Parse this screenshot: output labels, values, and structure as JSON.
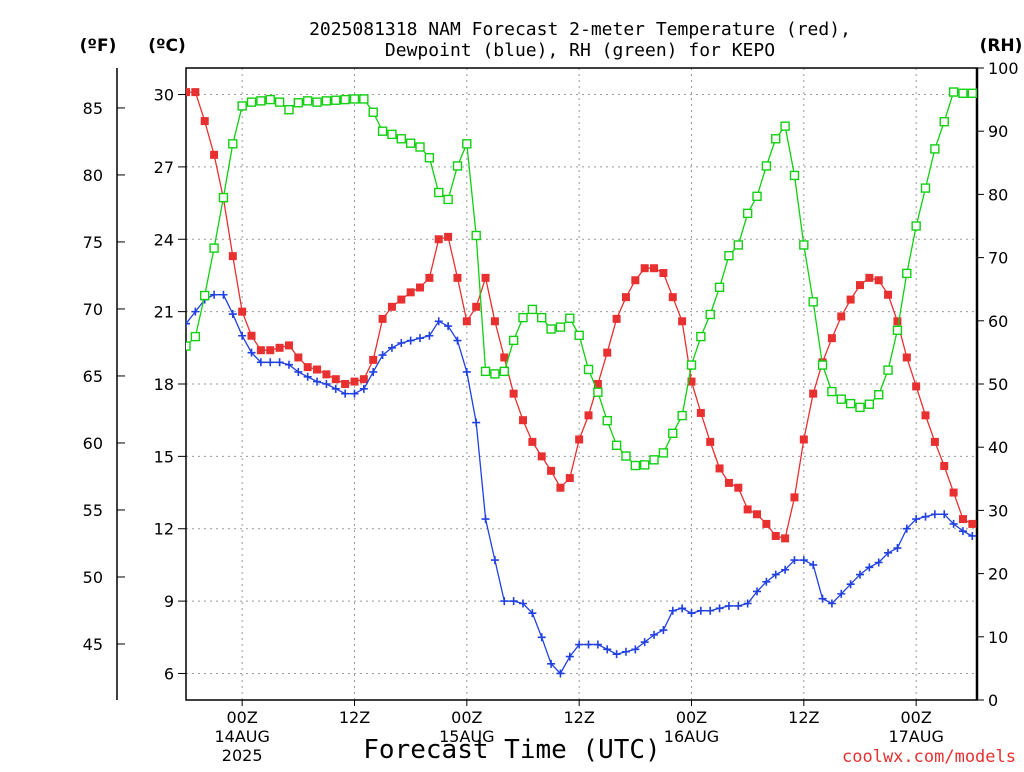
{
  "chart_data": {
    "type": "line",
    "title": "2025081318 NAM Forecast 2-meter Temperature (red),",
    "subtitle": "Dewpoint (blue), RH (green) for KEPO",
    "xlabel": "Forecast Time (UTC)",
    "credit": "coolwx.com/models",
    "y_left_units": "(ºC)",
    "y_left2_units": "(ºF)",
    "y_right_units": "(RH)",
    "y_left_ticks": [
      "6",
      "9",
      "12",
      "15",
      "18",
      "21",
      "24",
      "27",
      "30"
    ],
    "y_left2_ticks": [
      "45",
      "50",
      "55",
      "60",
      "65",
      "70",
      "75",
      "80",
      "85"
    ],
    "y_right_ticks": [
      "0",
      "10",
      "20",
      "30",
      "40",
      "50",
      "60",
      "70",
      "80",
      "90",
      "100"
    ],
    "ylim_c": [
      4.9,
      31.1
    ],
    "ylim_rh": [
      0,
      100
    ],
    "x_range_hours": [
      0,
      84.5
    ],
    "grid": true,
    "x_ticks": [
      {
        "hour": 6,
        "label": "00Z",
        "date": "14AUG",
        "year": "2025"
      },
      {
        "hour": 18,
        "label": "12Z",
        "date": "",
        "year": ""
      },
      {
        "hour": 30,
        "label": "00Z",
        "date": "15AUG",
        "year": ""
      },
      {
        "hour": 42,
        "label": "12Z",
        "date": "",
        "year": ""
      },
      {
        "hour": 54,
        "label": "00Z",
        "date": "16AUG",
        "year": ""
      },
      {
        "hour": 66,
        "label": "12Z",
        "date": "",
        "year": ""
      },
      {
        "hour": 78,
        "label": "00Z",
        "date": "17AUG",
        "year": ""
      }
    ],
    "series": [
      {
        "name": "Temperature",
        "color": "#e83030",
        "marker": "square-filled",
        "axis": "celsius",
        "x": [
          0,
          1,
          2,
          3,
          4,
          5,
          6,
          7,
          8,
          9,
          10,
          11,
          12,
          13,
          14,
          15,
          16,
          17,
          18,
          19,
          20,
          21,
          22,
          23,
          24,
          25,
          26,
          27,
          28,
          29,
          30,
          31,
          32,
          33,
          34,
          35,
          36,
          37,
          38,
          39,
          40,
          41,
          42,
          43,
          44,
          45,
          46,
          47,
          48,
          49,
          50,
          51,
          52,
          53,
          54,
          55,
          56,
          57,
          58,
          59,
          60,
          61,
          62,
          63,
          64,
          65,
          66,
          67,
          68,
          69,
          70,
          71,
          72,
          73,
          74,
          75,
          76,
          77,
          78,
          79,
          80,
          81,
          82,
          83,
          84
        ],
        "values": [
          30.1,
          30.1,
          28.9,
          27.5,
          25.7,
          23.3,
          21.0,
          20.0,
          19.4,
          19.4,
          19.5,
          19.6,
          19.1,
          18.7,
          18.6,
          18.4,
          18.2,
          18.0,
          18.1,
          18.2,
          19.0,
          20.7,
          21.2,
          21.5,
          21.8,
          22.0,
          22.4,
          24.0,
          24.1,
          22.4,
          20.6,
          21.2,
          22.4,
          20.6,
          19.1,
          17.6,
          16.5,
          15.6,
          15.0,
          14.4,
          13.7,
          14.1,
          15.7,
          16.7,
          18.0,
          19.3,
          20.7,
          21.6,
          22.3,
          22.8,
          22.8,
          22.6,
          21.6,
          20.6,
          18.1,
          16.8,
          15.6,
          14.5,
          13.9,
          13.7,
          12.8,
          12.6,
          12.2,
          11.7,
          11.6,
          13.3,
          15.7,
          17.6,
          18.9,
          19.9,
          20.8,
          21.5,
          22.1,
          22.4,
          22.3,
          21.7,
          20.6,
          19.1,
          17.9,
          16.7,
          15.6,
          14.6,
          13.5,
          12.4,
          12.2
        ]
      },
      {
        "name": "Dewpoint",
        "color": "#2040e0",
        "marker": "plus",
        "axis": "celsius",
        "x": [
          0,
          1,
          2,
          3,
          4,
          5,
          6,
          7,
          8,
          9,
          10,
          11,
          12,
          13,
          14,
          15,
          16,
          17,
          18,
          19,
          20,
          21,
          22,
          23,
          24,
          25,
          26,
          27,
          28,
          29,
          30,
          31,
          32,
          33,
          34,
          35,
          36,
          37,
          38,
          39,
          40,
          41,
          42,
          43,
          44,
          45,
          46,
          47,
          48,
          49,
          50,
          51,
          52,
          53,
          54,
          55,
          56,
          57,
          58,
          59,
          60,
          61,
          62,
          63,
          64,
          65,
          66,
          67,
          68,
          69,
          70,
          71,
          72,
          73,
          74,
          75,
          76,
          77,
          78,
          79,
          80,
          81,
          82,
          83,
          84
        ],
        "values": [
          20.5,
          21.0,
          21.5,
          21.7,
          21.7,
          20.9,
          20.0,
          19.3,
          18.9,
          18.9,
          18.9,
          18.8,
          18.5,
          18.3,
          18.1,
          18.0,
          17.8,
          17.6,
          17.6,
          17.8,
          18.5,
          19.2,
          19.5,
          19.7,
          19.8,
          19.9,
          20.0,
          20.6,
          20.4,
          19.8,
          18.5,
          16.4,
          12.4,
          10.7,
          9.0,
          9.0,
          8.9,
          8.5,
          7.5,
          6.4,
          6.0,
          6.7,
          7.2,
          7.2,
          7.2,
          7.0,
          6.8,
          6.9,
          7.0,
          7.3,
          7.6,
          7.8,
          8.6,
          8.7,
          8.5,
          8.6,
          8.6,
          8.7,
          8.8,
          8.8,
          8.9,
          9.4,
          9.8,
          10.1,
          10.3,
          10.7,
          10.7,
          10.5,
          9.1,
          8.9,
          9.3,
          9.7,
          10.1,
          10.4,
          10.6,
          11.0,
          11.2,
          12.0,
          12.4,
          12.5,
          12.6,
          12.6,
          12.2,
          11.9,
          11.7
        ]
      },
      {
        "name": "RH",
        "color": "#10d010",
        "marker": "square-open",
        "axis": "rh",
        "x": [
          0,
          1,
          2,
          3,
          4,
          5,
          6,
          7,
          8,
          9,
          10,
          11,
          12,
          13,
          14,
          15,
          16,
          17,
          18,
          19,
          20,
          21,
          22,
          23,
          24,
          25,
          26,
          27,
          28,
          29,
          30,
          31,
          32,
          33,
          34,
          35,
          36,
          37,
          38,
          39,
          40,
          41,
          42,
          43,
          44,
          45,
          46,
          47,
          48,
          49,
          50,
          51,
          52,
          53,
          54,
          55,
          56,
          57,
          58,
          59,
          60,
          61,
          62,
          63,
          64,
          65,
          66,
          67,
          68,
          69,
          70,
          71,
          72,
          73,
          74,
          75,
          76,
          77,
          78,
          79,
          80,
          81,
          82,
          83,
          84
        ],
        "values": [
          56.0,
          57.5,
          64.0,
          71.5,
          79.5,
          88.0,
          94.0,
          94.6,
          94.8,
          95.0,
          94.6,
          93.4,
          94.5,
          94.8,
          94.6,
          94.8,
          94.9,
          95.0,
          95.1,
          95.1,
          93.0,
          90.0,
          89.5,
          88.8,
          88.1,
          87.5,
          85.8,
          80.3,
          79.2,
          84.5,
          88.0,
          73.5,
          52.0,
          51.6,
          52.0,
          56.9,
          60.5,
          61.8,
          60.5,
          58.7,
          59.0,
          60.4,
          57.7,
          52.3,
          48.7,
          44.2,
          40.3,
          38.6,
          37.1,
          37.2,
          38.0,
          39.1,
          42.2,
          45.0,
          53.0,
          57.5,
          61.0,
          65.3,
          70.3,
          72.0,
          77.0,
          79.7,
          84.5,
          88.8,
          90.8,
          83.0,
          72.0,
          63.0,
          53.0,
          48.8,
          47.6,
          46.9,
          46.3,
          46.8,
          48.3,
          52.2,
          58.5,
          67.5,
          75.0,
          81.0,
          87.2,
          91.5,
          96.2,
          96.0,
          96.0
        ]
      }
    ]
  }
}
